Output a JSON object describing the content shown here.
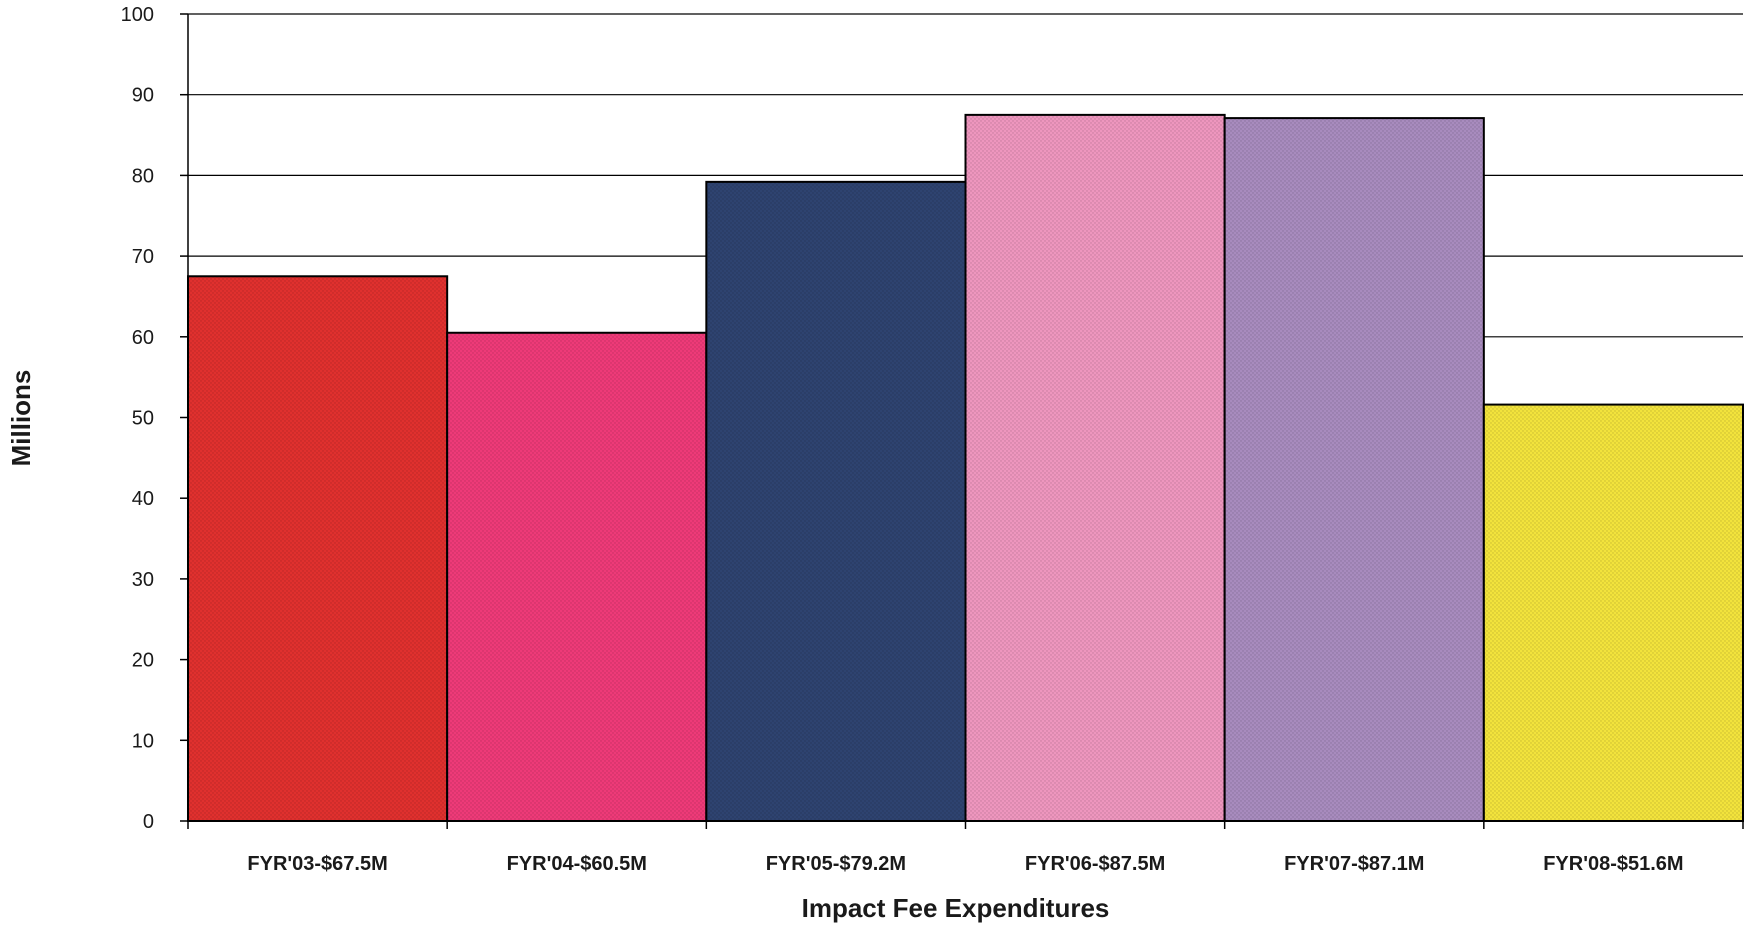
{
  "chart_data": {
    "type": "bar",
    "title": "",
    "xlabel": "Impact Fee Expenditures",
    "ylabel": "Millions",
    "ylim": [
      0,
      100
    ],
    "yticks": [
      "0",
      "10",
      "20",
      "30",
      "40",
      "50",
      "60",
      "70",
      "80",
      "90",
      "100"
    ],
    "grid": true,
    "legend": "none",
    "categories": [
      "FYR'03-$67.5M",
      "FYR'04-$60.5M",
      "FYR'05-$79.2M",
      "FYR'06-$87.5M",
      "FYR'07-$87.1M",
      "FYR'08-$51.6M"
    ],
    "values": [
      67.5,
      60.5,
      79.2,
      87.5,
      87.1,
      51.6
    ],
    "colors": [
      "#E0302E",
      "#EE3A78",
      "#2E4370",
      "#EE96BE",
      "#A88BBE",
      "#F2E33C"
    ]
  }
}
